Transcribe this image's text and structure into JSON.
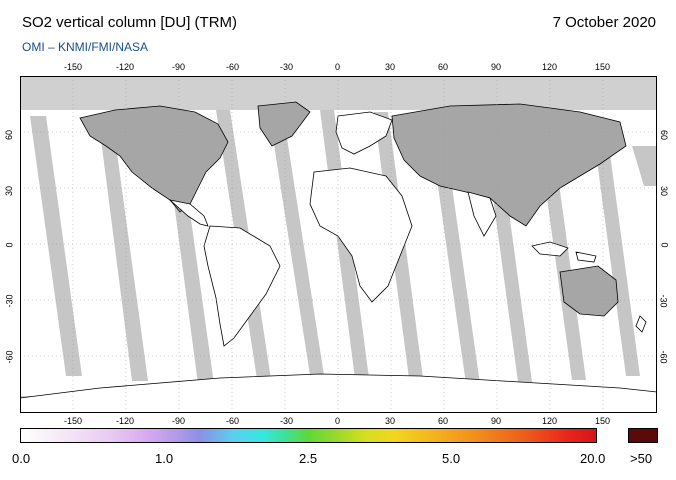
{
  "title": "SO2 vertical column [DU] (TRM)",
  "date": "7 October 2020",
  "credit": "OMI  –  KNMI/FMI/NASA",
  "map": {
    "lon_ticks": [
      "-150",
      "-120",
      "-90",
      "-60",
      "-30",
      "0",
      "30",
      "60",
      "90",
      "120",
      "150"
    ],
    "lat_ticks_left": [
      "60",
      "30",
      "0",
      "-30",
      "-60"
    ],
    "lat_ticks_right": [
      "60",
      "30",
      "0",
      "-30",
      "-60"
    ],
    "colors": {
      "no_data": "#cfcfcf",
      "land_no_data": "#a6a6a6",
      "ocean": "#ffffff",
      "coastline": "#000000",
      "orbit_gap": "#c4c4c4"
    }
  },
  "colorbar": {
    "labels": [
      "0.0",
      "1.0",
      "2.5",
      "5.0",
      "20.0"
    ],
    "max_label": ">50",
    "max_color": "#5b0a0a"
  }
}
